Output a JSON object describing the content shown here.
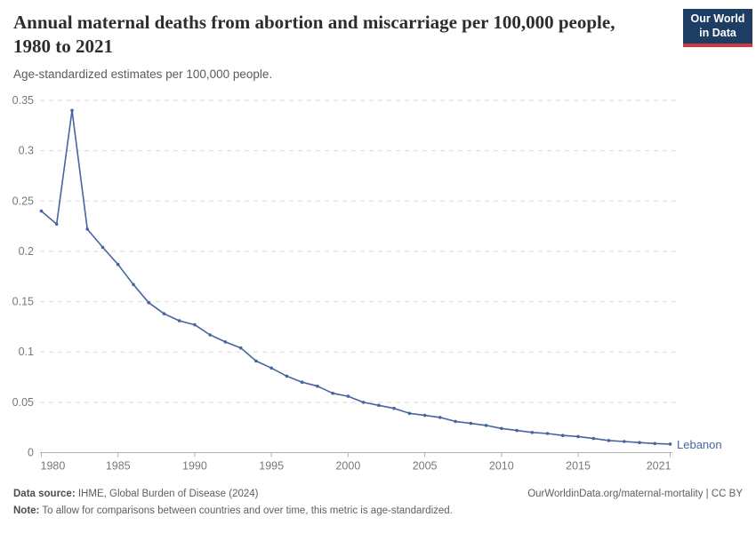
{
  "header": {
    "title": "Annual maternal deaths from abortion and miscarriage per 100,000 people, 1980 to 2021",
    "subtitle": "Age-standardized estimates per 100,000 people.",
    "logo": {
      "line1": "Our World",
      "line2": "in Data",
      "bg_color": "#1d3d63",
      "stripe_color": "#cf3b3c"
    }
  },
  "chart_data": {
    "type": "line",
    "title": "Annual maternal deaths from abortion and miscarriage per 100,000 people, 1980 to 2021",
    "subtitle": "Age-standardized estimates per 100,000 people.",
    "xlabel": "",
    "ylabel": "",
    "xlim": [
      1980,
      2021
    ],
    "ylim": [
      0,
      0.35
    ],
    "grid": "horizontal-dashed",
    "legend_position": "end-of-line",
    "x": [
      1980,
      1981,
      1982,
      1983,
      1984,
      1985,
      1986,
      1987,
      1988,
      1989,
      1990,
      1991,
      1992,
      1993,
      1994,
      1995,
      1996,
      1997,
      1998,
      1999,
      2000,
      2001,
      2002,
      2003,
      2004,
      2005,
      2006,
      2007,
      2008,
      2009,
      2010,
      2011,
      2012,
      2013,
      2014,
      2015,
      2016,
      2017,
      2018,
      2019,
      2020,
      2021
    ],
    "series": [
      {
        "name": "Lebanon",
        "color": "#4664a0",
        "values": [
          0.24,
          0.227,
          0.34,
          0.222,
          0.204,
          0.187,
          0.167,
          0.149,
          0.138,
          0.131,
          0.127,
          0.117,
          0.11,
          0.104,
          0.091,
          0.084,
          0.076,
          0.07,
          0.066,
          0.059,
          0.056,
          0.05,
          0.047,
          0.044,
          0.039,
          0.037,
          0.035,
          0.031,
          0.029,
          0.027,
          0.024,
          0.022,
          0.02,
          0.019,
          0.017,
          0.016,
          0.014,
          0.012,
          0.011,
          0.01,
          0.009,
          0.0085
        ]
      }
    ],
    "x_tick_values": [
      1980,
      1985,
      1990,
      1995,
      2000,
      2005,
      2010,
      2015,
      2021
    ],
    "x_tick_labels": [
      "1980",
      "1985",
      "1990",
      "1995",
      "2000",
      "2005",
      "2010",
      "2015",
      "2021"
    ],
    "y_tick_values": [
      0,
      0.05,
      0.1,
      0.15,
      0.2,
      0.25,
      0.3,
      0.35
    ],
    "y_tick_labels": [
      "0",
      "0.05",
      "0.1",
      "0.15",
      "0.2",
      "0.25",
      "0.3",
      "0.35"
    ],
    "style": {
      "grid_color": "#d9d9d9",
      "axis_color": "#b0b0b0",
      "tick_label_color": "#787878"
    }
  },
  "footer": {
    "source_label": "Data source:",
    "source_text": " IHME, Global Burden of Disease (2024)",
    "attribution": "OurWorldinData.org/maternal-mortality | CC BY",
    "note_label": "Note:",
    "note_text": " To allow for comparisons between countries and over time, this metric is age-standardized."
  }
}
